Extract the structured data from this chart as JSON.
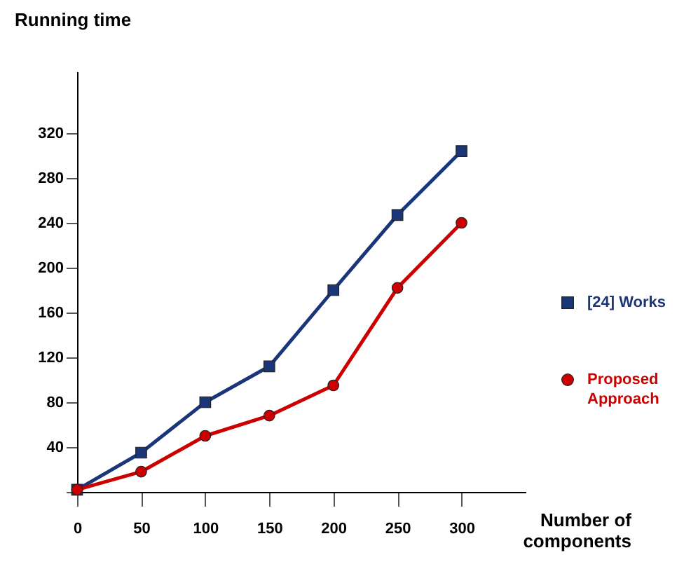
{
  "chart_data": {
    "type": "line",
    "xlabel": "Number of components",
    "ylabel": "Running time",
    "x": [
      0,
      50,
      100,
      150,
      200,
      250,
      300
    ],
    "series": [
      {
        "name": "[24] Works",
        "color": "#1a3578",
        "marker": "square",
        "values": [
          2,
          35,
          80,
          112,
          180,
          247,
          304
        ]
      },
      {
        "name": "Proposed Approach",
        "color": "#cc0000",
        "marker": "circle",
        "values": [
          2,
          18,
          50,
          68,
          95,
          182,
          240
        ]
      }
    ],
    "xlim": [
      0,
      350
    ],
    "ylim": [
      0,
      375
    ],
    "xticks": [
      0,
      50,
      100,
      150,
      200,
      250,
      300
    ],
    "yticks": [
      {
        "value": 0,
        "label": null
      },
      40,
      80,
      120,
      160,
      200,
      240,
      280,
      320
    ],
    "grid": false,
    "legend": "right"
  }
}
